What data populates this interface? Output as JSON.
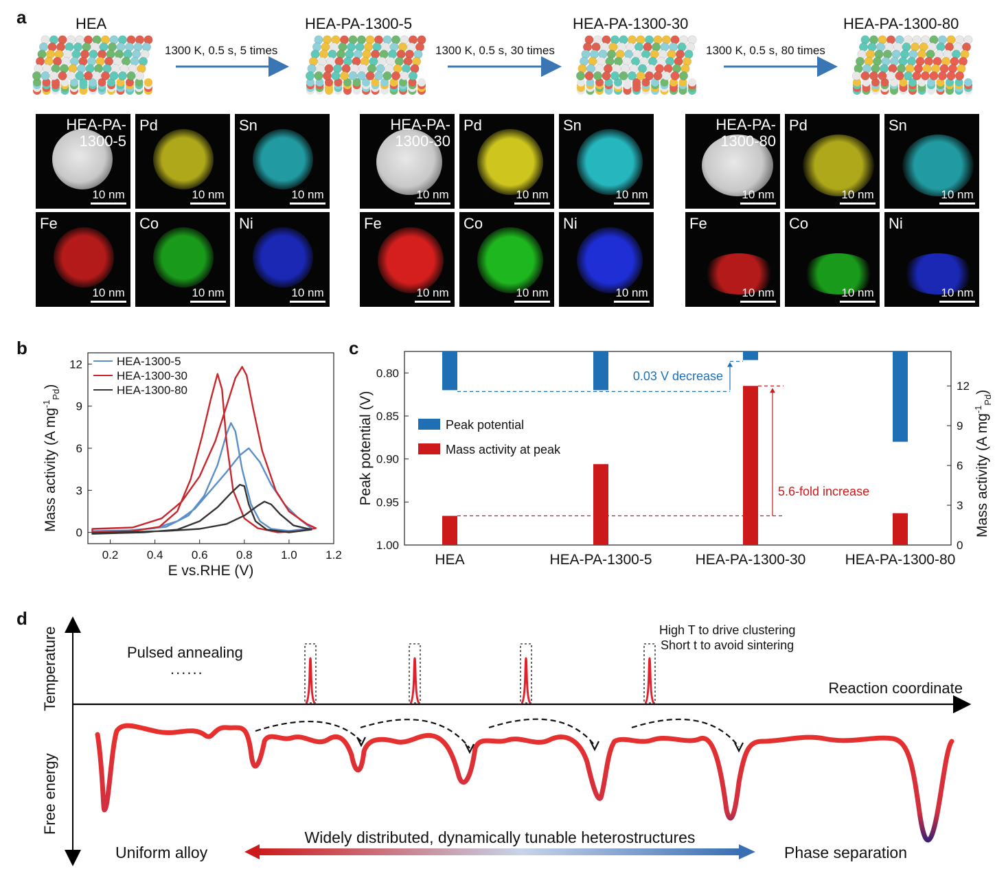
{
  "panel_a": {
    "letter": "a",
    "stages": [
      "HEA",
      "HEA-PA-1300-5",
      "HEA-PA-1300-30",
      "HEA-PA-1300-80"
    ],
    "arrows": [
      "1300 K, 0.5 s, 5 times",
      "1300 K, 0.5 s, 30 times",
      "1300 K, 0.5 s, 80 times"
    ],
    "groups": [
      {
        "haadf_label": "HEA-PA-\n1300-5"
      },
      {
        "haadf_label": "HEA-PA-\n1300-30"
      },
      {
        "haadf_label": "HEA-PA-\n1300-80"
      }
    ],
    "elements": [
      "Pd",
      "Sn",
      "Fe",
      "Co",
      "Ni"
    ],
    "scale_bar": "10 nm",
    "element_colors": {
      "Pd": "#d8d020",
      "Sn": "#28c0c8",
      "Fe": "#e02020",
      "Co": "#20c020",
      "Ni": "#2030e0"
    }
  },
  "panel_b": {
    "letter": "b",
    "chart_data": {
      "type": "line",
      "xlabel": "E vs.RHE (V)",
      "ylabel": "Mass activity (A mg",
      "ylabel_sup": "-1",
      "ylabel_sub": "Pd",
      "xlim": [
        0.1,
        1.2
      ],
      "ylim": [
        -0.8,
        12.8
      ],
      "xticks": [
        "0.2",
        "0.4",
        "0.6",
        "0.8",
        "1.0",
        "1.2"
      ],
      "yticks": [
        "0",
        "3",
        "6",
        "9",
        "12"
      ],
      "series": [
        {
          "name": "HEA-1300-5",
          "color": "#5b8ec9",
          "points": [
            [
              0.12,
              0.1
            ],
            [
              0.3,
              0.15
            ],
            [
              0.45,
              0.4
            ],
            [
              0.55,
              1.2
            ],
            [
              0.62,
              2.6
            ],
            [
              0.68,
              4.8
            ],
            [
              0.72,
              7.0
            ],
            [
              0.74,
              7.8
            ],
            [
              0.76,
              7.2
            ],
            [
              0.79,
              4.5
            ],
            [
              0.83,
              2.0
            ],
            [
              0.87,
              0.8
            ],
            [
              0.92,
              0.25
            ],
            [
              1.0,
              0.1
            ],
            [
              1.1,
              0.3
            ],
            [
              1.05,
              0.9
            ],
            [
              0.98,
              2.0
            ],
            [
              0.92,
              3.4
            ],
            [
              0.87,
              5.0
            ],
            [
              0.82,
              6.0
            ],
            [
              0.78,
              5.5
            ],
            [
              0.72,
              4.3
            ],
            [
              0.65,
              3.0
            ],
            [
              0.58,
              1.7
            ],
            [
              0.5,
              0.8
            ],
            [
              0.4,
              0.3
            ],
            [
              0.25,
              0.1
            ],
            [
              0.12,
              0.05
            ]
          ]
        },
        {
          "name": "HEA-1300-30",
          "color": "#c8262a",
          "points": [
            [
              0.12,
              0.0
            ],
            [
              0.3,
              0.1
            ],
            [
              0.42,
              0.4
            ],
            [
              0.5,
              1.5
            ],
            [
              0.56,
              3.8
            ],
            [
              0.61,
              6.8
            ],
            [
              0.65,
              9.5
            ],
            [
              0.68,
              11.3
            ],
            [
              0.7,
              10.2
            ],
            [
              0.72,
              6.5
            ],
            [
              0.75,
              3.0
            ],
            [
              0.8,
              1.0
            ],
            [
              0.86,
              0.3
            ],
            [
              0.95,
              0.0
            ],
            [
              1.05,
              0.1
            ],
            [
              1.12,
              0.3
            ],
            [
              1.08,
              0.6
            ],
            [
              1.0,
              1.5
            ],
            [
              0.94,
              3.0
            ],
            [
              0.88,
              5.8
            ],
            [
              0.84,
              8.8
            ],
            [
              0.81,
              11.2
            ],
            [
              0.79,
              11.8
            ],
            [
              0.76,
              11.0
            ],
            [
              0.72,
              9.0
            ],
            [
              0.67,
              6.5
            ],
            [
              0.6,
              4.0
            ],
            [
              0.52,
              2.2
            ],
            [
              0.43,
              1.0
            ],
            [
              0.3,
              0.35
            ],
            [
              0.12,
              0.25
            ]
          ]
        },
        {
          "name": "HEA-1300-80",
          "color": "#333333",
          "points": [
            [
              0.12,
              -0.1
            ],
            [
              0.35,
              0.0
            ],
            [
              0.5,
              0.2
            ],
            [
              0.6,
              0.8
            ],
            [
              0.68,
              1.8
            ],
            [
              0.74,
              2.8
            ],
            [
              0.78,
              3.4
            ],
            [
              0.8,
              3.3
            ],
            [
              0.82,
              2.0
            ],
            [
              0.85,
              0.8
            ],
            [
              0.9,
              0.2
            ],
            [
              1.0,
              0.0
            ],
            [
              1.1,
              0.2
            ],
            [
              1.02,
              0.5
            ],
            [
              0.96,
              1.3
            ],
            [
              0.92,
              2.0
            ],
            [
              0.89,
              2.2
            ],
            [
              0.86,
              1.9
            ],
            [
              0.8,
              1.2
            ],
            [
              0.72,
              0.6
            ],
            [
              0.6,
              0.25
            ],
            [
              0.45,
              0.1
            ],
            [
              0.12,
              -0.05
            ]
          ]
        }
      ]
    }
  },
  "panel_c": {
    "letter": "c",
    "chart_data": {
      "type": "bar",
      "categories": [
        "HEA",
        "HEA-PA-1300-5",
        "HEA-PA-1300-30",
        "HEA-PA-1300-80"
      ],
      "ylabel_left": "Peak potential (V)",
      "ylabel_right": "Mass activity (A mg",
      "ylabel_right_sup": "-1",
      "ylabel_right_sub": "Pd",
      "left_ylim": [
        1.0,
        0.775
      ],
      "left_yticks": [
        "0.80",
        "0.85",
        "0.90",
        "0.95",
        "1.00"
      ],
      "right_ylim": [
        0,
        14.6
      ],
      "right_yticks": [
        "0",
        "3",
        "6",
        "9",
        "12"
      ],
      "series": [
        {
          "name": "Peak potential",
          "color": "#1f6fb4",
          "axis": "left",
          "values": [
            0.82,
            0.82,
            0.785,
            0.88
          ]
        },
        {
          "name": "Mass activity at peak",
          "color": "#cc1a1a",
          "axis": "right",
          "values": [
            2.2,
            6.1,
            12.0,
            2.4
          ]
        }
      ],
      "annotations": [
        {
          "text": "0.03 V decrease",
          "color": "#1f6fb4"
        },
        {
          "text": "5.6-fold increase",
          "color": "#cc1a1a"
        }
      ]
    }
  },
  "panel_d": {
    "letter": "d",
    "y_axis_top": "Temperature",
    "y_axis_bottom": "Free energy",
    "x_axis": "Reaction coordinate",
    "pulsed_label": "Pulsed annealing",
    "dots": "......",
    "note_line1": "High T to drive clustering",
    "note_line2": "Short t to avoid sintering",
    "spectrum_left": "Uniform alloy",
    "spectrum_mid": "Widely distributed, dynamically tunable heterostructures",
    "spectrum_right": "Phase separation"
  }
}
